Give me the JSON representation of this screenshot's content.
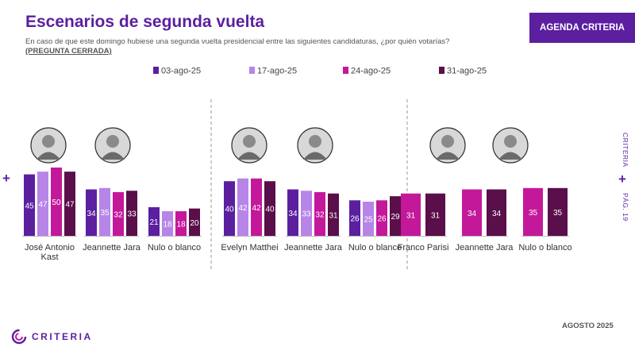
{
  "header": {
    "title": "Escenarios de segunda vuelta",
    "subtitle": "En caso de que este domingo hubiese una segunda vuelta presidencial entre las siguientes candidaturas, ¿por quién votarías?",
    "note": "(PREGUNTA CERRADA)",
    "badge": "AGENDA CRITERIA"
  },
  "side": {
    "page": "PÁG. 19",
    "brand": "CRITERIA",
    "plus": "+"
  },
  "footer": {
    "logo": "CRITERIA",
    "date": "AGOSTO 2025"
  },
  "colors": {
    "accent": "#5b1fa0",
    "divider": "#999999"
  },
  "chart_data": {
    "type": "bar",
    "series": [
      {
        "name": "03-ago-25",
        "color": "#5b1fa0"
      },
      {
        "name": "17-ago-25",
        "color": "#b784e8"
      },
      {
        "name": "24-ago-25",
        "color": "#c4189b"
      },
      {
        "name": "31-ago-25",
        "color": "#5a0e4a"
      }
    ],
    "panels": [
      {
        "groups": [
          {
            "label": "José Antonio Kast",
            "values": [
              45,
              47,
              50,
              47
            ],
            "photo": "photo-kast"
          },
          {
            "label": "Jeannette Jara",
            "values": [
              34,
              35,
              32,
              33
            ],
            "photo": "photo-jara"
          },
          {
            "label": "Nulo o blanco",
            "values": [
              21,
              18,
              18,
              20
            ]
          }
        ]
      },
      {
        "groups": [
          {
            "label": "Evelyn Matthei",
            "values": [
              40,
              42,
              42,
              40
            ],
            "photo": "photo-matthei"
          },
          {
            "label": "Jeannette Jara",
            "values": [
              34,
              33,
              32,
              31
            ],
            "photo": "photo-jara"
          },
          {
            "label": "Nulo o blanco",
            "values": [
              26,
              25,
              26,
              29
            ]
          }
        ]
      },
      {
        "groups": [
          {
            "label": "Franco Parisi",
            "values": [
              null,
              null,
              31,
              31
            ],
            "photo": "photo-parisi"
          },
          {
            "label": "Jeannette Jara",
            "values": [
              null,
              null,
              34,
              34
            ],
            "photo": "photo-jara"
          },
          {
            "label": "Nulo o blanco",
            "values": [
              null,
              null,
              35,
              35
            ]
          }
        ]
      }
    ]
  }
}
